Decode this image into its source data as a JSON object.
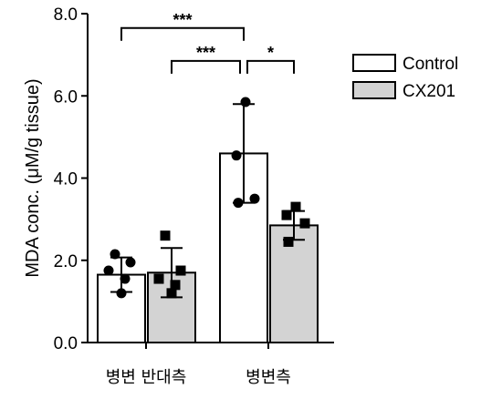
{
  "chart_data": {
    "type": "bar",
    "title": "",
    "xlabel": "",
    "ylabel": "MDA conc. (μM/g tissue)",
    "ylim": [
      0,
      8
    ],
    "yticks": [
      "0.0",
      "2.0",
      "4.0",
      "6.0",
      "8.0"
    ],
    "grid": false,
    "legend_position": "top-right",
    "categories": [
      "병변 반대측",
      "병변측"
    ],
    "series": [
      {
        "name": "Control",
        "color": "#ffffff",
        "marker": "circle",
        "values": [
          1.65,
          4.6
        ],
        "errors": [
          0.42,
          1.2
        ],
        "points": [
          [
            2.15,
            1.95,
            1.75,
            1.55,
            1.2
          ],
          [
            5.85,
            4.55,
            3.5,
            3.4
          ]
        ]
      },
      {
        "name": "CX201",
        "color": "#d3d3d3",
        "marker": "square",
        "values": [
          1.7,
          2.85
        ],
        "errors": [
          0.6,
          0.35
        ],
        "points": [
          [
            2.6,
            1.75,
            1.55,
            1.4,
            1.2
          ],
          [
            3.3,
            3.1,
            2.9,
            2.45
          ]
        ]
      }
    ],
    "significance": [
      {
        "label": "***",
        "from": "Control|병변 반대측",
        "to": "Control|병변측",
        "level": 7.65
      },
      {
        "label": "***",
        "from": "CX201|병변 반대측",
        "to": "Control|병변측",
        "level": 6.85
      },
      {
        "label": "*",
        "from": "Control|병변측",
        "to": "CX201|병변측",
        "level": 6.85
      }
    ]
  }
}
